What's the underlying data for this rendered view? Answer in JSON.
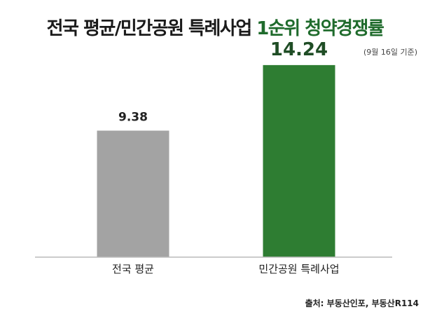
{
  "title": {
    "main": "전국 평균/민간공원 특례사업 ",
    "highlight": "1순위 청약경쟁률"
  },
  "date_note": "(9월 16일 기준)",
  "source": "출처: 부동산인포, 부동산R114",
  "colors": {
    "bar_national": "#a3a3a3",
    "bar_private_park": "#2e7d32",
    "label_highlight": "#1f4d25",
    "label_normal": "#222222",
    "axis": "#bbbbbb"
  },
  "chart_data": {
    "type": "bar",
    "categories": [
      "전국 평균",
      "민간공원 특례사업"
    ],
    "values": [
      9.38,
      14.24
    ],
    "value_labels": [
      "9.38",
      "14.24"
    ],
    "ylim": [
      0,
      16
    ],
    "grid": false,
    "legend": "none"
  }
}
